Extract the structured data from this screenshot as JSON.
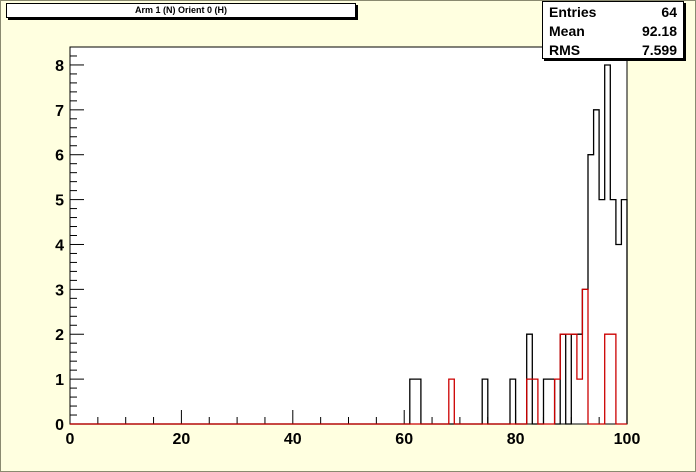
{
  "title": "Arm 1 (N) Orient 0 (H)",
  "stats": {
    "entries_label": "Entries",
    "entries_value": "64",
    "mean_label": "Mean",
    "mean_value": "92.18",
    "rms_label": "RMS",
    "rms_value": "7.599"
  },
  "colors": {
    "background": "#ffffe0",
    "frame": "#ffffff",
    "black_series": "#000000",
    "red_series": "#cc0000"
  },
  "chart_data": {
    "type": "histogram",
    "xlim": [
      0,
      100
    ],
    "ylim": [
      0,
      8.4
    ],
    "bin_width": 1,
    "xticks": [
      0,
      20,
      40,
      60,
      80,
      100
    ],
    "yticks": [
      0,
      1,
      2,
      3,
      4,
      5,
      6,
      7,
      8
    ],
    "series": [
      {
        "color": "#000000",
        "bins": [
          {
            "x": 61,
            "y": 1
          },
          {
            "x": 62,
            "y": 1
          },
          {
            "x": 74,
            "y": 1
          },
          {
            "x": 79,
            "y": 1
          },
          {
            "x": 82,
            "y": 2
          },
          {
            "x": 85,
            "y": 1
          },
          {
            "x": 86,
            "y": 1
          },
          {
            "x": 88,
            "y": 2
          },
          {
            "x": 90,
            "y": 2
          },
          {
            "x": 91,
            "y": 2
          },
          {
            "x": 92,
            "y": 3
          },
          {
            "x": 93,
            "y": 6
          },
          {
            "x": 94,
            "y": 7
          },
          {
            "x": 95,
            "y": 5
          },
          {
            "x": 96,
            "y": 8
          },
          {
            "x": 97,
            "y": 5
          },
          {
            "x": 98,
            "y": 4
          },
          {
            "x": 99,
            "y": 5
          },
          {
            "x": 100,
            "y": 8.4
          }
        ]
      },
      {
        "color": "#cc0000",
        "bins": [
          {
            "x": 68,
            "y": 1
          },
          {
            "x": 82,
            "y": 1
          },
          {
            "x": 83,
            "y": 1
          },
          {
            "x": 87,
            "y": 1
          },
          {
            "x": 88,
            "y": 2
          },
          {
            "x": 89,
            "y": 2
          },
          {
            "x": 90,
            "y": 2
          },
          {
            "x": 91,
            "y": 1
          },
          {
            "x": 92,
            "y": 3
          },
          {
            "x": 96,
            "y": 2
          },
          {
            "x": 97,
            "y": 2
          }
        ]
      }
    ]
  }
}
